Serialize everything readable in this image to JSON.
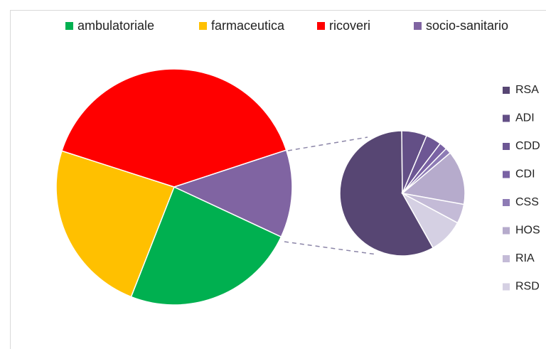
{
  "chart_data": {
    "type": "pie",
    "categories": [
      "ambulatoriale",
      "farmaceutica",
      "ricoveri",
      "socio-sanitario"
    ],
    "values": [
      24,
      24,
      40,
      12
    ],
    "colors": [
      "#00b050",
      "#ffc000",
      "#ff0000",
      "#8064a2"
    ],
    "breakout": {
      "type": "pie",
      "categories": [
        "RSA",
        "ADI",
        "CDD",
        "CDI",
        "CSS",
        "HOS",
        "RIA",
        "RSD"
      ],
      "values": [
        58,
        6.5,
        4,
        2,
        1.5,
        14,
        5,
        9
      ],
      "colors": [
        "#574673",
        "#634f86",
        "#6d5794",
        "#7a62a4",
        "#8e7cb5",
        "#b6abcc",
        "#c4bbd7",
        "#d5d0e3"
      ]
    }
  }
}
